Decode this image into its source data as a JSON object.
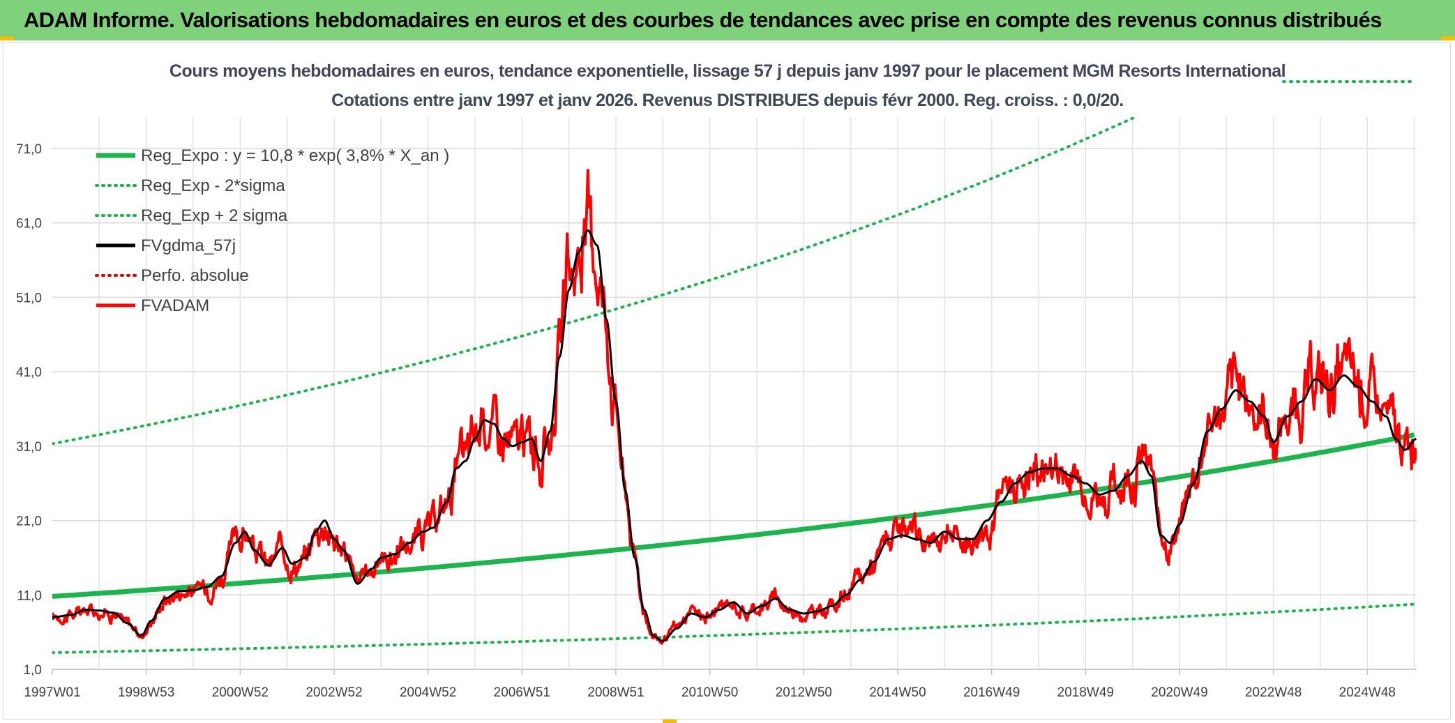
{
  "header": {
    "title": "ADAM Informe. Valorisations hebdomadaires en euros et des courbes de tendances avec prise en compte des revenus connus distribués"
  },
  "chart_data": {
    "type": "line",
    "title_line1": "Cours moyens hebdomadaires en euros, tendance exponentielle, lissage 57 j depuis janv 1997 pour le placement MGM Resorts International",
    "title_line2": "Cotations entre janv 1997 et janv 2026. Revenus DISTRIBUES depuis févr 2000. Reg. croiss. : 0,0/20.",
    "y_ticks": [
      "1,0",
      "11,0",
      "21,0",
      "31,0",
      "41,0",
      "51,0",
      "61,0",
      "71,0"
    ],
    "ylim": [
      1,
      75
    ],
    "x_ticks": [
      {
        "label": "1997W01",
        "year": 1997.0
      },
      {
        "label": "1998W53",
        "year": 1999.0
      },
      {
        "label": "2000W52",
        "year": 2001.0
      },
      {
        "label": "2002W52",
        "year": 2003.0
      },
      {
        "label": "2004W52",
        "year": 2005.0
      },
      {
        "label": "2006W51",
        "year": 2007.0
      },
      {
        "label": "2008W51",
        "year": 2009.0
      },
      {
        "label": "2010W50",
        "year": 2011.0
      },
      {
        "label": "2012W50",
        "year": 2013.0
      },
      {
        "label": "2014W50",
        "year": 2015.0
      },
      {
        "label": "2016W49",
        "year": 2017.0
      },
      {
        "label": "2018W49",
        "year": 2019.0
      },
      {
        "label": "2020W49",
        "year": 2021.0
      },
      {
        "label": "2022W48",
        "year": 2023.0
      },
      {
        "label": "2024W48",
        "year": 2025.0
      }
    ],
    "xlim": [
      1997.0,
      2026.05
    ],
    "grid": true,
    "legend_position": "top-left",
    "regression": {
      "a": 10.8,
      "rate": 0.038,
      "lower_factor": 0.3,
      "upper_factor": 2.9
    },
    "series": [
      {
        "name": "Reg_Expo : y = 10,8 * exp( 3,8% *  X_an )",
        "color": "#1db34f",
        "style": "solid",
        "kind": "reg"
      },
      {
        "name": "Reg_Exp - 2*sigma",
        "color": "#1db34f",
        "style": "dotted",
        "kind": "reg_low"
      },
      {
        "name": "Reg_Exp + 2 sigma",
        "color": "#1db34f",
        "style": "dotted",
        "kind": "reg_high"
      },
      {
        "name": "FVgdma_57j",
        "color": "#000000",
        "style": "solid",
        "kind": "smooth"
      },
      {
        "name": "Perfo. absolue",
        "color": "#e00000",
        "style": "dotted",
        "kind": "none"
      },
      {
        "name": "FVADAM",
        "color": "#ff0000",
        "style": "solid",
        "kind": "price"
      }
    ],
    "price_points": [
      [
        1997.0,
        8.0
      ],
      [
        1997.4,
        8.3
      ],
      [
        1997.7,
        9.0
      ],
      [
        1998.0,
        8.9
      ],
      [
        1998.3,
        8.6
      ],
      [
        1998.6,
        7.2
      ],
      [
        1998.9,
        5.5
      ],
      [
        1999.1,
        7.5
      ],
      [
        1999.4,
        10.5
      ],
      [
        1999.7,
        11.5
      ],
      [
        2000.0,
        11.6
      ],
      [
        2000.3,
        12.1
      ],
      [
        2000.6,
        13.5
      ],
      [
        2000.9,
        18.0
      ],
      [
        2001.1,
        19.5
      ],
      [
        2001.3,
        17.0
      ],
      [
        2001.6,
        15.0
      ],
      [
        2001.9,
        17.3
      ],
      [
        2002.1,
        15.2
      ],
      [
        2002.4,
        16.0
      ],
      [
        2002.6,
        19.5
      ],
      [
        2002.8,
        21.0
      ],
      [
        2003.0,
        18.5
      ],
      [
        2003.2,
        17.0
      ],
      [
        2003.5,
        12.5
      ],
      [
        2003.8,
        14.5
      ],
      [
        2004.0,
        16.0
      ],
      [
        2004.3,
        16.5
      ],
      [
        2004.6,
        18.0
      ],
      [
        2004.9,
        19.5
      ],
      [
        2005.1,
        20.0
      ],
      [
        2005.4,
        23.5
      ],
      [
        2005.6,
        28.0
      ],
      [
        2005.8,
        29.0
      ],
      [
        2006.0,
        32.0
      ],
      [
        2006.2,
        34.5
      ],
      [
        2006.4,
        34.0
      ],
      [
        2006.6,
        32.0
      ],
      [
        2006.8,
        31.0
      ],
      [
        2007.0,
        31.5
      ],
      [
        2007.2,
        32.0
      ],
      [
        2007.4,
        29.0
      ],
      [
        2007.6,
        33.0
      ],
      [
        2007.8,
        43.0
      ],
      [
        2008.0,
        52.0
      ],
      [
        2008.2,
        57.0
      ],
      [
        2008.4,
        60.0
      ],
      [
        2008.6,
        58.0
      ],
      [
        2008.8,
        48.0
      ],
      [
        2009.0,
        37.0
      ],
      [
        2009.2,
        25.0
      ],
      [
        2009.4,
        16.0
      ],
      [
        2009.6,
        9.0
      ],
      [
        2009.8,
        5.5
      ],
      [
        2010.0,
        4.8
      ],
      [
        2010.3,
        6.5
      ],
      [
        2010.6,
        8.5
      ],
      [
        2010.9,
        8.0
      ],
      [
        2011.2,
        9.0
      ],
      [
        2011.5,
        10.0
      ],
      [
        2011.8,
        8.5
      ],
      [
        2012.1,
        9.5
      ],
      [
        2012.4,
        10.5
      ],
      [
        2012.7,
        9.0
      ],
      [
        2013.0,
        8.5
      ],
      [
        2013.3,
        8.8
      ],
      [
        2013.6,
        9.5
      ],
      [
        2013.9,
        11.0
      ],
      [
        2014.2,
        13.0
      ],
      [
        2014.5,
        15.5
      ],
      [
        2014.8,
        18.5
      ],
      [
        2015.1,
        19.0
      ],
      [
        2015.4,
        18.5
      ],
      [
        2015.7,
        18.0
      ],
      [
        2016.0,
        19.5
      ],
      [
        2016.3,
        18.5
      ],
      [
        2016.6,
        18.5
      ],
      [
        2016.9,
        21.0
      ],
      [
        2017.2,
        23.5
      ],
      [
        2017.5,
        26.0
      ],
      [
        2017.8,
        27.5
      ],
      [
        2018.1,
        28.0
      ],
      [
        2018.4,
        28.0
      ],
      [
        2018.7,
        27.0
      ],
      [
        2019.0,
        26.0
      ],
      [
        2019.3,
        24.5
      ],
      [
        2019.6,
        25.0
      ],
      [
        2019.9,
        27.0
      ],
      [
        2020.2,
        29.0
      ],
      [
        2020.4,
        27.0
      ],
      [
        2020.6,
        19.0
      ],
      [
        2020.8,
        18.0
      ],
      [
        2021.0,
        20.5
      ],
      [
        2021.3,
        26.0
      ],
      [
        2021.6,
        33.0
      ],
      [
        2021.9,
        36.0
      ],
      [
        2022.2,
        38.5
      ],
      [
        2022.5,
        37.0
      ],
      [
        2022.8,
        35.0
      ],
      [
        2023.0,
        31.5
      ],
      [
        2023.3,
        35.0
      ],
      [
        2023.6,
        37.0
      ],
      [
        2023.9,
        40.0
      ],
      [
        2024.2,
        38.5
      ],
      [
        2024.5,
        40.5
      ],
      [
        2024.8,
        39.0
      ],
      [
        2025.1,
        37.0
      ],
      [
        2025.4,
        35.0
      ],
      [
        2025.6,
        32.0
      ],
      [
        2025.8,
        30.5
      ],
      [
        2026.05,
        32.0
      ]
    ]
  }
}
